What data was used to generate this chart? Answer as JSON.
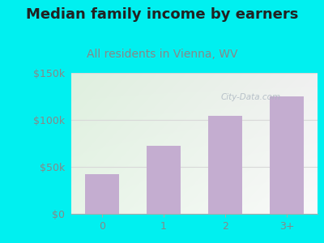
{
  "title": "Median family income by earners",
  "subtitle": "All residents in Vienna, WV",
  "categories": [
    "0",
    "1",
    "2",
    "3+"
  ],
  "values": [
    42000,
    72000,
    104000,
    125000
  ],
  "bar_color": "#c4add0",
  "background_outer": "#00f0f0",
  "background_plot_tl": "#dff0df",
  "background_plot_tr": "#f0f0f0",
  "background_plot_bl": "#e8f5e8",
  "background_plot_br": "#fafafa",
  "ylim": [
    0,
    150000
  ],
  "yticks": [
    0,
    50000,
    100000,
    150000
  ],
  "ytick_labels": [
    "$0",
    "$50k",
    "$100k",
    "$150k"
  ],
  "title_fontsize": 13,
  "subtitle_fontsize": 10,
  "title_color": "#222222",
  "subtitle_color": "#888888",
  "tick_color": "#888888",
  "watermark_text": "City-Data.com",
  "watermark_color": "#adb8c2",
  "grid_color": "#d8d8d8"
}
